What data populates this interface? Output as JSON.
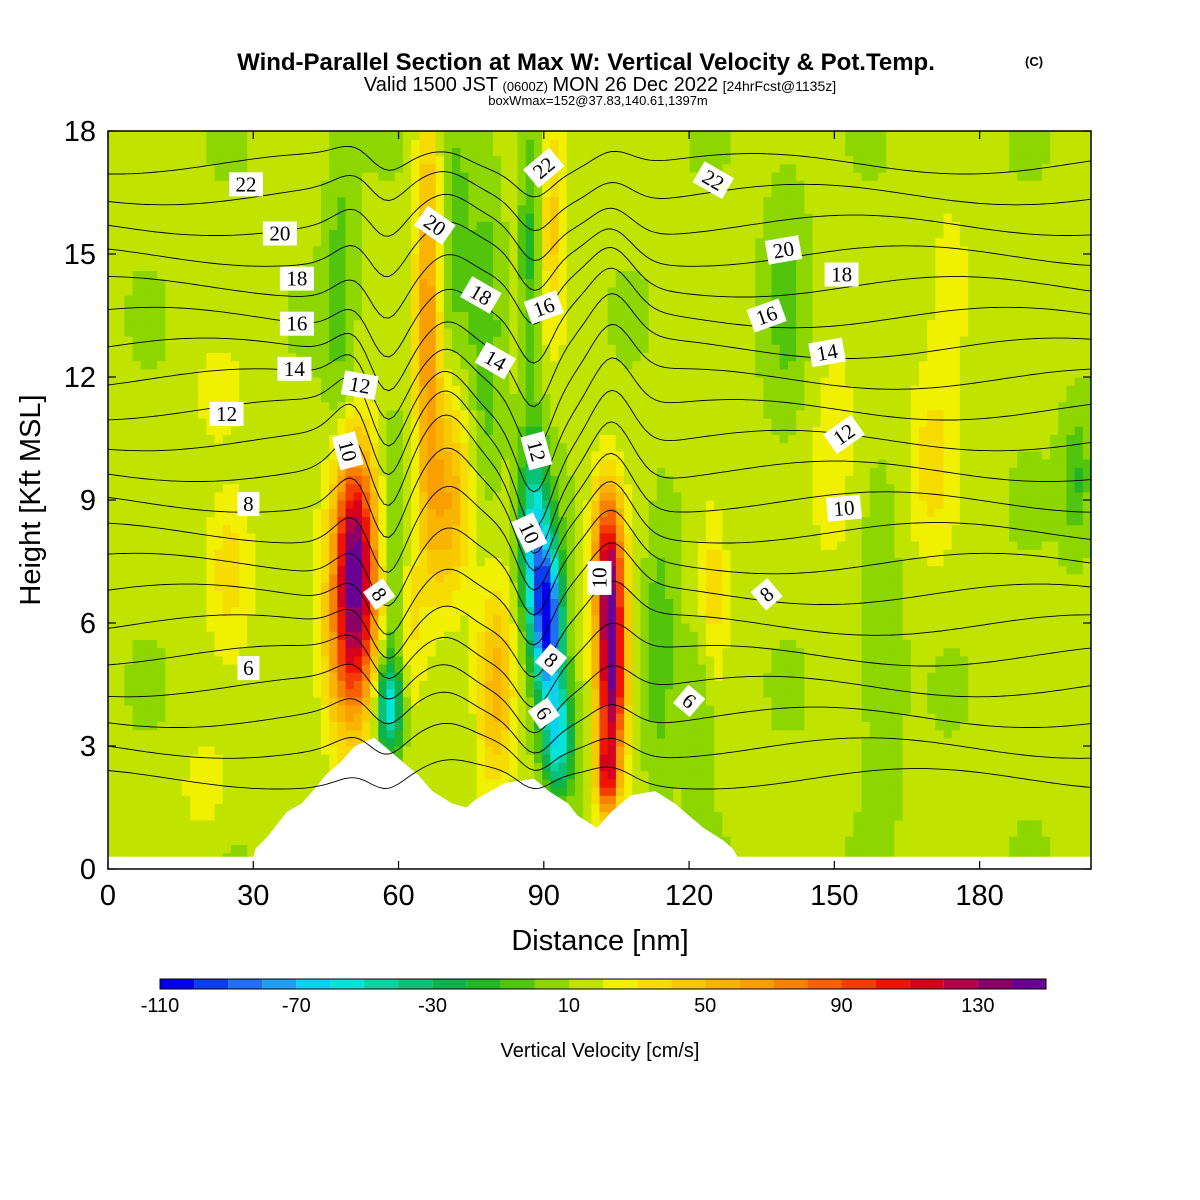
{
  "chart_data": {
    "type": "heatmap",
    "title": "Wind-Parallel Section at Max W: Vertical Velocity & Pot.Temp.",
    "title_mark": "(C)",
    "subtitle": {
      "valid_prefix": "Valid 1500 JST",
      "utc": "(0600Z)",
      "date": "MON 26 Dec 2022",
      "fcst": "[24hrFcst@1135z]"
    },
    "box_info": "boxWmax=152@37.83,140.61,1397m",
    "xlabel": "Distance [nm]",
    "ylabel": "Height [Kft MSL]",
    "xlim": [
      0,
      203
    ],
    "ylim": [
      0,
      18
    ],
    "x_ticks": [
      0,
      30,
      60,
      90,
      120,
      150,
      180
    ],
    "y_ticks": [
      0,
      3,
      6,
      9,
      12,
      15,
      18
    ],
    "colorbar": {
      "label": "Vertical Velocity [cm/s]",
      "min": -110,
      "step": 10,
      "ticks": [
        -110,
        -70,
        -30,
        10,
        50,
        90,
        130
      ],
      "colors": [
        "#0000ee",
        "#0a3cf0",
        "#1f6ef3",
        "#1e9ef2",
        "#0ad2f0",
        "#08e3d8",
        "#0ad2a0",
        "#09c277",
        "#0db24c",
        "#22b626",
        "#52c40c",
        "#8dd600",
        "#c0e300",
        "#f0f000",
        "#f6dc00",
        "#f8c800",
        "#f9b400",
        "#f99f00",
        "#f88200",
        "#f76000",
        "#f53c00",
        "#ef1400",
        "#d6001e",
        "#b2004a",
        "#8a0066",
        "#6a0093"
      ],
      "last_value": 150
    },
    "terrain_kft": [
      [
        0,
        0.3
      ],
      [
        30,
        0.3
      ],
      [
        30.5,
        0.5
      ],
      [
        33,
        0.8
      ],
      [
        35,
        1.1
      ],
      [
        37,
        1.4
      ],
      [
        40,
        1.6
      ],
      [
        43,
        2.0
      ],
      [
        45,
        2.3
      ],
      [
        48,
        2.6
      ],
      [
        51,
        3.0
      ],
      [
        55,
        3.2
      ],
      [
        58,
        2.9
      ],
      [
        61,
        2.6
      ],
      [
        64,
        2.3
      ],
      [
        67,
        1.9
      ],
      [
        71,
        1.6
      ],
      [
        74,
        1.5
      ],
      [
        76,
        1.7
      ],
      [
        79,
        1.9
      ],
      [
        82,
        2.1
      ],
      [
        88,
        2.2
      ],
      [
        91,
        1.9
      ],
      [
        95,
        1.6
      ],
      [
        97,
        1.3
      ],
      [
        101,
        1.0
      ],
      [
        104,
        1.4
      ],
      [
        108,
        1.8
      ],
      [
        113,
        1.9
      ],
      [
        117,
        1.6
      ],
      [
        120,
        1.3
      ],
      [
        123,
        1.0
      ],
      [
        127,
        0.7
      ],
      [
        129,
        0.5
      ],
      [
        130,
        0.3
      ],
      [
        203,
        0.3
      ]
    ],
    "w_features": [
      {
        "x": 51,
        "z": 7.7,
        "sx": 4.5,
        "sz": 2.6,
        "w": 125
      },
      {
        "x": 50,
        "z": 5.0,
        "sx": 5.5,
        "sz": 2.2,
        "w": 55
      },
      {
        "x": 58,
        "z": 4.0,
        "sx": 3.0,
        "sz": 1.2,
        "w": -70
      },
      {
        "x": 59,
        "z": 7.0,
        "sx": 2.5,
        "sz": 3.0,
        "w": -25
      },
      {
        "x": 66,
        "z": 13.5,
        "sx": 2.5,
        "sz": 5.0,
        "w": 55
      },
      {
        "x": 70,
        "z": 9.0,
        "sx": 4.5,
        "sz": 2.6,
        "w": 45
      },
      {
        "x": 62,
        "z": 6.0,
        "sx": 3.0,
        "sz": 2.5,
        "w": 20
      },
      {
        "x": 78,
        "z": 13.0,
        "sx": 3.0,
        "sz": 4.0,
        "w": -20
      },
      {
        "x": 80,
        "z": 4.5,
        "sx": 4.0,
        "sz": 2.5,
        "w": 45
      },
      {
        "x": 88,
        "z": 8.0,
        "sx": 3.0,
        "sz": 2.5,
        "w": -70
      },
      {
        "x": 91,
        "z": 6.0,
        "sx": 3.0,
        "sz": 2.0,
        "w": -110
      },
      {
        "x": 93,
        "z": 3.2,
        "sx": 3.0,
        "sz": 1.4,
        "w": -70
      },
      {
        "x": 104,
        "z": 5.0,
        "sx": 3.0,
        "sz": 2.6,
        "w": 135
      },
      {
        "x": 103,
        "z": 7.8,
        "sx": 3.0,
        "sz": 1.8,
        "w": 70
      },
      {
        "x": 103,
        "z": 2.3,
        "sx": 2.0,
        "sz": 1.0,
        "w": 70
      },
      {
        "x": 92,
        "z": 16.0,
        "sx": 2.5,
        "sz": 3.0,
        "w": 30
      },
      {
        "x": 87,
        "z": 15.0,
        "sx": 2.0,
        "sz": 3.0,
        "w": -25
      },
      {
        "x": 114,
        "z": 5.5,
        "sx": 3.0,
        "sz": 3.0,
        "w": -20
      },
      {
        "x": 125,
        "z": 7.0,
        "sx": 3.0,
        "sz": 2.2,
        "w": 25
      },
      {
        "x": 122,
        "z": 4.0,
        "sx": 3.0,
        "sz": 2.0,
        "w": -15
      },
      {
        "x": 25,
        "z": 7.5,
        "sx": 5.0,
        "sz": 2.0,
        "w": 25
      },
      {
        "x": 23,
        "z": 11.5,
        "sx": 5.0,
        "sz": 1.2,
        "w": 15
      },
      {
        "x": 48,
        "z": 14.0,
        "sx": 3.0,
        "sz": 4.0,
        "w": -18
      },
      {
        "x": 170,
        "z": 10.0,
        "sx": 5.0,
        "sz": 2.5,
        "w": 22
      },
      {
        "x": 174,
        "z": 14.0,
        "sx": 4.0,
        "sz": 2.0,
        "w": 20
      },
      {
        "x": 150,
        "z": 10.0,
        "sx": 5.0,
        "sz": 3.0,
        "w": 15
      },
      {
        "x": 140,
        "z": 14.0,
        "sx": 4.0,
        "sz": 3.0,
        "w": -15
      },
      {
        "x": 200,
        "z": 9.5,
        "sx": 3.0,
        "sz": 1.5,
        "w": -25
      },
      {
        "x": 160,
        "z": 5.0,
        "sx": 4.0,
        "sz": 3.0,
        "w": -12
      },
      {
        "x": 20,
        "z": 2.0,
        "sx": 5.0,
        "sz": 1.2,
        "w": 15
      },
      {
        "x": 72,
        "z": 16.0,
        "sx": 3.0,
        "sz": 3.0,
        "w": -20
      }
    ],
    "theta_contour_values": [
      6,
      8,
      10,
      12,
      14,
      16,
      18,
      20,
      22
    ],
    "contour_labels": [
      {
        "text": "22",
        "x": 28.5,
        "z": 16.7,
        "rot": 0
      },
      {
        "text": "20",
        "x": 35.5,
        "z": 15.5,
        "rot": 0
      },
      {
        "text": "18",
        "x": 39.0,
        "z": 14.4,
        "rot": 0
      },
      {
        "text": "16",
        "x": 39.0,
        "z": 13.3,
        "rot": 0
      },
      {
        "text": "14",
        "x": 38.5,
        "z": 12.2,
        "rot": 0
      },
      {
        "text": "12",
        "x": 24.5,
        "z": 11.1,
        "rot": 0
      },
      {
        "text": "8",
        "x": 29.0,
        "z": 8.9,
        "rot": 0
      },
      {
        "text": "6",
        "x": 29.0,
        "z": 4.9,
        "rot": 0
      },
      {
        "text": "12",
        "x": 52.0,
        "z": 11.8,
        "rot": 10
      },
      {
        "text": "10",
        "x": 49.5,
        "z": 10.2,
        "rot": 75
      },
      {
        "text": "8",
        "x": 56.0,
        "z": 6.7,
        "rot": 55
      },
      {
        "text": "20",
        "x": 67.5,
        "z": 15.7,
        "rot": 35
      },
      {
        "text": "18",
        "x": 77.0,
        "z": 14.0,
        "rot": 30
      },
      {
        "text": "16",
        "x": 90.0,
        "z": 13.7,
        "rot": -20
      },
      {
        "text": "14",
        "x": 80.0,
        "z": 12.4,
        "rot": 30
      },
      {
        "text": "22",
        "x": 90.0,
        "z": 17.1,
        "rot": -40
      },
      {
        "text": "12",
        "x": 88.5,
        "z": 10.2,
        "rot": 75
      },
      {
        "text": "10",
        "x": 87.0,
        "z": 8.2,
        "rot": 65
      },
      {
        "text": "8",
        "x": 91.5,
        "z": 5.1,
        "rot": 40
      },
      {
        "text": "6",
        "x": 90.0,
        "z": 3.8,
        "rot": 55
      },
      {
        "text": "10",
        "x": 101.5,
        "z": 7.1,
        "rot": -90
      },
      {
        "text": "22",
        "x": 125.0,
        "z": 16.8,
        "rot": 30
      },
      {
        "text": "20",
        "x": 139.5,
        "z": 15.1,
        "rot": -10
      },
      {
        "text": "18",
        "x": 151.5,
        "z": 14.5,
        "rot": 0
      },
      {
        "text": "16",
        "x": 136.0,
        "z": 13.5,
        "rot": -20
      },
      {
        "text": "14",
        "x": 148.5,
        "z": 12.6,
        "rot": -10
      },
      {
        "text": "12",
        "x": 152.0,
        "z": 10.6,
        "rot": -35
      },
      {
        "text": "10",
        "x": 152.0,
        "z": 8.8,
        "rot": -5
      },
      {
        "text": "8",
        "x": 136.0,
        "z": 6.7,
        "rot": -40
      },
      {
        "text": "6",
        "x": 120.0,
        "z": 4.1,
        "rot": 40
      }
    ]
  }
}
